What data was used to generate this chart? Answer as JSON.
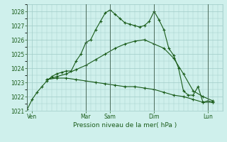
{
  "xlabel": "Pression niveau de la mer( hPa )",
  "bg_color": "#cff0ec",
  "grid_color": "#a0ccc8",
  "line_color": "#1a5c1a",
  "dark_line_color": "#3a6b3a",
  "ylim": [
    1021,
    1028.5
  ],
  "xlim": [
    0,
    20
  ],
  "day_labels": [
    "Ven",
    "Mar",
    "Sam",
    "Dim",
    "Lun"
  ],
  "day_positions": [
    0.5,
    6,
    8.5,
    13,
    18.5
  ],
  "vline_positions": [
    0,
    6,
    8.5,
    13,
    18.5
  ],
  "series1_x": [
    0,
    0.5,
    1,
    1.5,
    2,
    2.5,
    3,
    3.5,
    4,
    4.5,
    5,
    5.5,
    6,
    6.5,
    7,
    7.5,
    8,
    8.5,
    9,
    9.5,
    10,
    10.5,
    11,
    11.5,
    12,
    12.5,
    13,
    13.5,
    14,
    14.5,
    15,
    15.5,
    16,
    16.5,
    17,
    17.5,
    18,
    18.5,
    19
  ],
  "series1_y": [
    1021.1,
    1021.8,
    1022.3,
    1022.7,
    1023.1,
    1023.4,
    1023.6,
    1023.7,
    1023.8,
    1023.8,
    1024.5,
    1025.0,
    1025.8,
    1026.0,
    1026.7,
    1027.3,
    1027.9,
    1028.1,
    1027.8,
    1027.5,
    1027.2,
    1027.1,
    1027.0,
    1026.9,
    1027.0,
    1027.3,
    1028.0,
    1027.4,
    1026.7,
    1025.4,
    1024.9,
    1024.0,
    1022.4,
    1022.1,
    1022.1,
    1022.7,
    1021.6,
    1021.7,
    1021.6
  ],
  "series2_x": [
    2,
    3,
    4,
    5,
    6,
    7,
    8,
    9,
    10,
    11,
    12,
    13,
    14,
    15,
    16,
    17,
    18,
    19
  ],
  "series2_y": [
    1023.2,
    1023.4,
    1023.6,
    1023.9,
    1024.2,
    1024.6,
    1025.0,
    1025.4,
    1025.7,
    1025.9,
    1026.0,
    1025.7,
    1025.4,
    1024.7,
    1023.6,
    1022.4,
    1022.0,
    1021.7
  ],
  "series3_x": [
    2,
    3,
    4,
    5,
    6,
    7,
    8,
    9,
    10,
    11,
    12,
    13,
    14,
    15,
    16,
    17,
    18,
    19
  ],
  "series3_y": [
    1023.2,
    1023.3,
    1023.3,
    1023.2,
    1023.1,
    1023.0,
    1022.9,
    1022.8,
    1022.7,
    1022.7,
    1022.6,
    1022.5,
    1022.3,
    1022.1,
    1022.0,
    1021.8,
    1021.6,
    1021.6
  ],
  "yticks": [
    1021,
    1022,
    1023,
    1024,
    1025,
    1026,
    1027,
    1028
  ]
}
